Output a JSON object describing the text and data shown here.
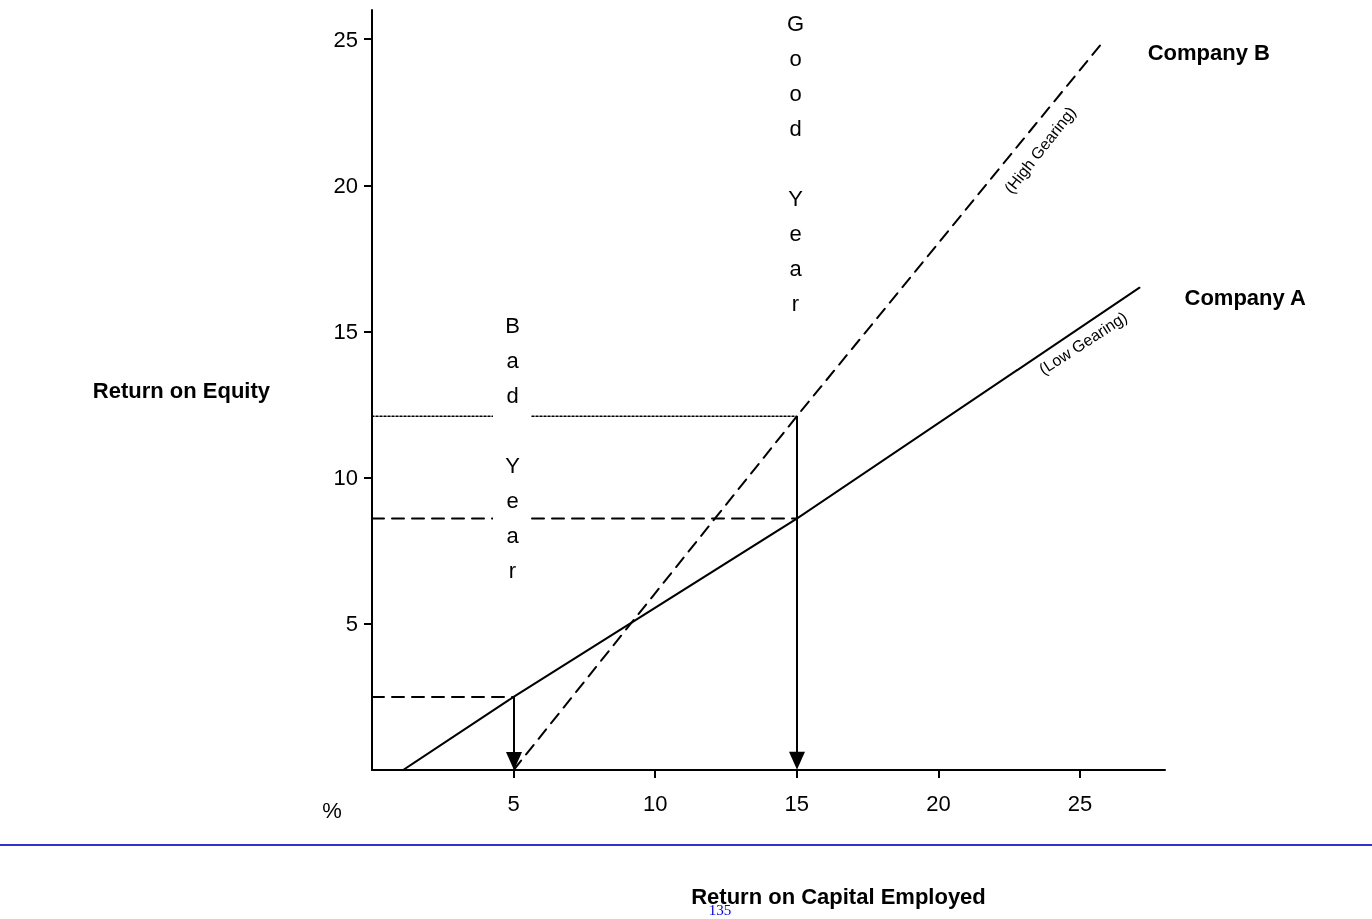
{
  "chart_data": {
    "type": "line",
    "xlabel": "Return on Capital Employed",
    "ylabel": "Return on Equity",
    "xlim": [
      0,
      28
    ],
    "ylim": [
      0,
      26
    ],
    "xticks": [
      5,
      10,
      15,
      20,
      25
    ],
    "yticks": [
      5,
      10,
      15,
      20,
      25
    ],
    "grid": false,
    "marker": "none",
    "series": [
      {
        "name": "Company A",
        "color": "#000000",
        "line_style": "solid",
        "x": [
          1.1,
          5,
          15,
          27.1
        ],
        "values": [
          0,
          2.5,
          8.6,
          16.5
        ]
      },
      {
        "name": "Company B",
        "color": "#000000",
        "line_style": "dashed",
        "x": [
          5,
          15,
          25.8
        ],
        "values": [
          0,
          12.1,
          24.9
        ]
      },
      {
        "color": "#000000",
        "line_style": "dotted",
        "x": [
          0,
          15
        ],
        "values": [
          12.1,
          12.1
        ]
      },
      {
        "color": "#000000",
        "line_style": "dashed",
        "x": [
          0,
          15
        ],
        "values": [
          8.6,
          8.6
        ]
      },
      {
        "color": "#000000",
        "line_style": "dashed",
        "x": [
          0,
          5
        ],
        "values": [
          2.5,
          2.5
        ]
      }
    ],
    "annotations": [
      "Good Year",
      "Bad Year",
      "(High Gearing)",
      "(Low Gearing)",
      "%",
      "135"
    ]
  }
}
